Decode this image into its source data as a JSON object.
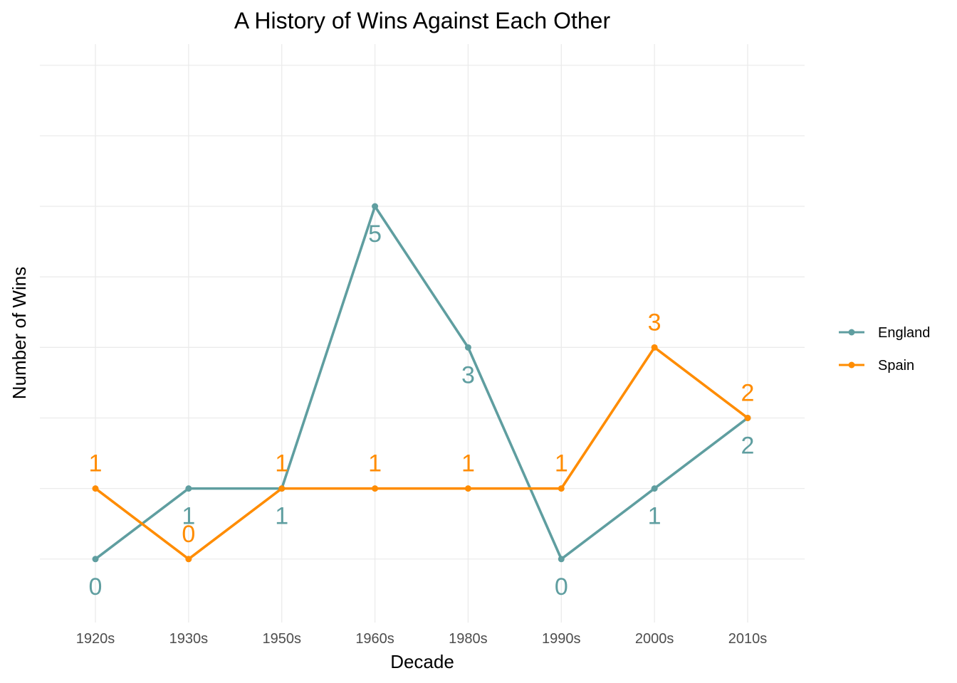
{
  "chart_data": {
    "type": "line",
    "title": "A History of Wins Against Each Other",
    "xlabel": "Decade",
    "ylabel": "Number of Wins",
    "categories": [
      "1920s",
      "1930s",
      "1950s",
      "1960s",
      "1980s",
      "1990s",
      "2000s",
      "2010s"
    ],
    "ylim": [
      -0.9,
      7.3
    ],
    "y_gridlines": [
      0,
      1,
      2,
      3,
      4,
      5,
      6,
      7
    ],
    "y_tick_labels_shown": false,
    "grid": true,
    "legend_position": "right",
    "series": [
      {
        "name": "England",
        "color": "#5f9ea0",
        "values": [
          0,
          1,
          1,
          5,
          3,
          0,
          1,
          2
        ],
        "label_position": "below"
      },
      {
        "name": "Spain",
        "color": "#ff8c00",
        "values": [
          1,
          0,
          1,
          1,
          1,
          1,
          3,
          2
        ],
        "label_position": "above"
      }
    ]
  }
}
